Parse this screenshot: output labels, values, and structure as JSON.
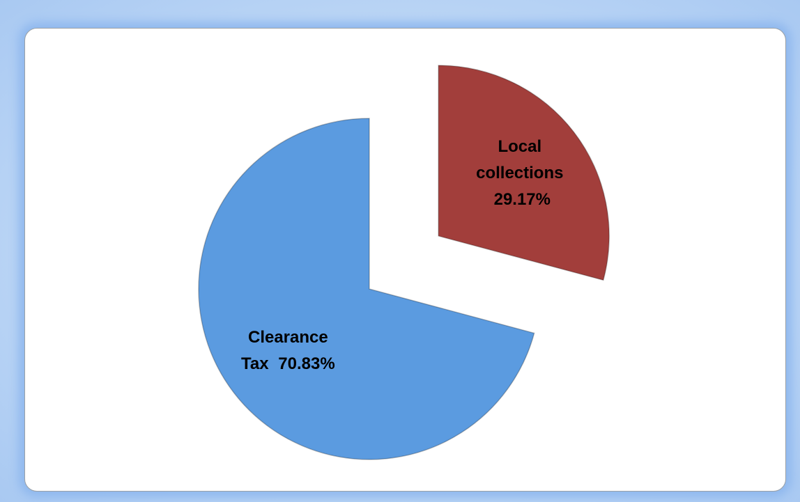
{
  "chart_data": {
    "type": "pie",
    "categories": [
      "Local collections",
      "Clearance Tax"
    ],
    "values": [
      29.17,
      70.83
    ],
    "value_labels": [
      "29.17%",
      "70.83%"
    ],
    "colors": [
      "#a23e3b",
      "#5b9be0"
    ]
  }
}
